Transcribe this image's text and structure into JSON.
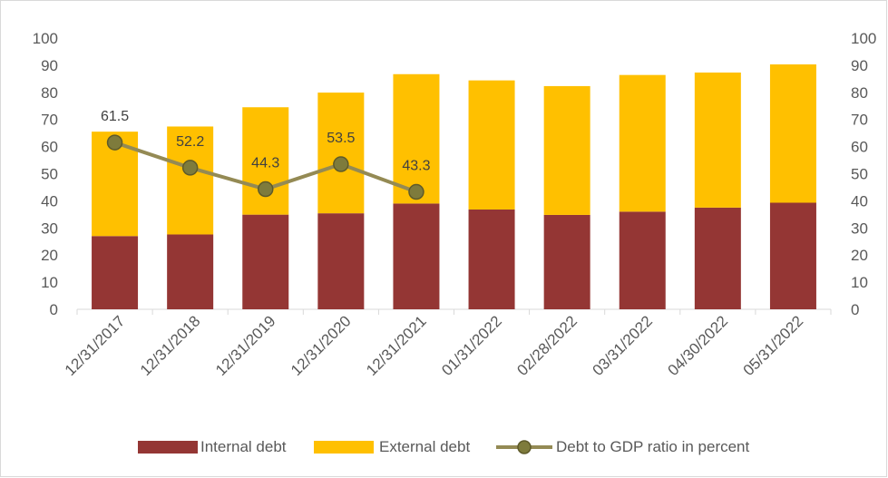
{
  "chart_data": {
    "type": "bar",
    "stacked": true,
    "categories": [
      "12/31/2017",
      "12/31/2018",
      "12/31/2019",
      "12/31/2020",
      "12/31/2021",
      "01/31/2022",
      "02/28/2022",
      "03/31/2022",
      "04/30/2022",
      "05/31/2022"
    ],
    "series": [
      {
        "name": "Internal debt",
        "kind": "bar",
        "axis": "left",
        "color": "#943634",
        "values": [
          27.0,
          27.6,
          34.9,
          35.4,
          39.0,
          36.8,
          34.8,
          36.0,
          37.5,
          39.3
        ]
      },
      {
        "name": "External debt",
        "kind": "bar",
        "axis": "left",
        "color": "#FFC000",
        "values": [
          38.5,
          39.8,
          39.6,
          44.5,
          47.7,
          47.6,
          47.5,
          50.4,
          49.8,
          51.0
        ]
      },
      {
        "name": "Debt to GDP ratio in percent",
        "kind": "line",
        "axis": "right",
        "color": "#948A54",
        "marker_fill": "#7E7B3C",
        "values": [
          61.5,
          52.2,
          44.3,
          53.5,
          43.3,
          null,
          null,
          null,
          null,
          null
        ],
        "labels": [
          "61.5",
          "52.2",
          "44.3",
          "53.5",
          "43.3"
        ]
      }
    ],
    "y_left": {
      "min": 0,
      "max": 100,
      "step": 10,
      "ticks": [
        "0",
        "10",
        "20",
        "30",
        "40",
        "50",
        "60",
        "70",
        "80",
        "90",
        "100"
      ]
    },
    "y_right": {
      "min": 0,
      "max": 100,
      "step": 10,
      "ticks": [
        "0",
        "10",
        "20",
        "30",
        "40",
        "50",
        "60",
        "70",
        "80",
        "90",
        "100"
      ]
    },
    "grid": false,
    "legend_position": "bottom",
    "title": "",
    "xlabel": "",
    "ylabel": ""
  }
}
